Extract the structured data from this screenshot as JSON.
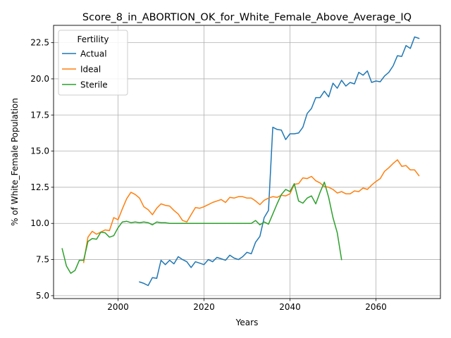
{
  "chart_data": {
    "type": "line",
    "title": "Score_8_in_ABORTION_OK_for_White_Female_Above_Average_IQ",
    "xlabel": "Years",
    "ylabel": "% of White_Female Population",
    "xlim": [
      1985,
      2075
    ],
    "ylim": [
      4.8,
      23.7
    ],
    "x_ticks": [
      2000,
      2020,
      2040,
      2060
    ],
    "y_ticks": [
      5.0,
      7.5,
      10.0,
      12.5,
      15.0,
      17.5,
      20.0,
      22.5
    ],
    "x_tick_labels": [
      "2000",
      "2020",
      "2040",
      "2060"
    ],
    "y_tick_labels": [
      "5.0",
      "7.5",
      "10.0",
      "12.5",
      "15.0",
      "17.5",
      "20.0",
      "22.5"
    ],
    "grid": true,
    "legend": {
      "title": "Fertility",
      "placement": "upper-left"
    },
    "series": [
      {
        "name": "Actual",
        "color": "#1f77b4",
        "x": [
          2005,
          2006,
          2007,
          2008,
          2009,
          2010,
          2011,
          2012,
          2013,
          2014,
          2015,
          2016,
          2017,
          2018,
          2019,
          2020,
          2021,
          2022,
          2023,
          2024,
          2025,
          2026,
          2027,
          2028,
          2029,
          2030,
          2031,
          2032,
          2033,
          2034,
          2035,
          2036,
          2037,
          2038,
          2039,
          2040,
          2041,
          2042,
          2043,
          2044,
          2045,
          2046,
          2047,
          2048,
          2049,
          2050,
          2051,
          2052,
          2053,
          2054,
          2055,
          2056,
          2057,
          2058,
          2059,
          2060,
          2061,
          2062,
          2063,
          2064,
          2065,
          2066,
          2067,
          2068,
          2069,
          2070
        ],
        "y": [
          5.95,
          5.85,
          5.7,
          6.25,
          6.2,
          7.45,
          7.15,
          7.45,
          7.2,
          7.7,
          7.5,
          7.35,
          6.95,
          7.35,
          7.25,
          7.15,
          7.5,
          7.35,
          7.65,
          7.55,
          7.45,
          7.8,
          7.6,
          7.5,
          7.7,
          8.0,
          7.9,
          8.7,
          9.1,
          10.4,
          10.9,
          16.65,
          16.5,
          16.45,
          15.8,
          16.2,
          16.2,
          16.25,
          16.65,
          17.6,
          17.95,
          18.7,
          18.7,
          19.15,
          18.75,
          19.7,
          19.35,
          19.9,
          19.5,
          19.75,
          19.65,
          20.45,
          20.25,
          20.55,
          19.75,
          19.85,
          19.8,
          20.2,
          20.45,
          20.9,
          21.6,
          21.55,
          22.3,
          22.1,
          22.9,
          22.8
        ]
      },
      {
        "name": "Ideal",
        "color": "#ff7f0e",
        "x": [
          1992,
          1993,
          1994,
          1995,
          1996,
          1997,
          1998,
          1999,
          2000,
          2001,
          2002,
          2003,
          2004,
          2005,
          2006,
          2007,
          2008,
          2009,
          2010,
          2011,
          2012,
          2013,
          2014,
          2015,
          2016,
          2017,
          2018,
          2019,
          2020,
          2021,
          2022,
          2023,
          2024,
          2025,
          2026,
          2027,
          2028,
          2029,
          2030,
          2031,
          2032,
          2033,
          2034,
          2035,
          2036,
          2037,
          2038,
          2039,
          2040,
          2041,
          2042,
          2043,
          2044,
          2045,
          2046,
          2047,
          2048,
          2049,
          2050,
          2051,
          2052,
          2053,
          2054,
          2055,
          2056,
          2057,
          2058,
          2059,
          2060,
          2061,
          2062,
          2063,
          2064,
          2065,
          2066,
          2067,
          2068,
          2069,
          2070
        ],
        "y": [
          7.3,
          9.05,
          9.45,
          9.25,
          9.4,
          9.55,
          9.5,
          10.4,
          10.25,
          11.0,
          11.7,
          12.15,
          12.0,
          11.75,
          11.15,
          10.95,
          10.6,
          11.05,
          11.35,
          11.25,
          11.2,
          10.9,
          10.65,
          10.2,
          10.1,
          10.6,
          11.1,
          11.05,
          11.15,
          11.3,
          11.45,
          11.55,
          11.65,
          11.45,
          11.8,
          11.75,
          11.85,
          11.85,
          11.75,
          11.75,
          11.55,
          11.3,
          11.6,
          11.75,
          11.85,
          11.8,
          11.95,
          11.9,
          12.05,
          12.7,
          12.75,
          13.15,
          13.1,
          13.25,
          12.95,
          12.8,
          12.55,
          12.5,
          12.35,
          12.1,
          12.2,
          12.05,
          12.05,
          12.25,
          12.2,
          12.45,
          12.35,
          12.65,
          12.9,
          13.1,
          13.6,
          13.85,
          14.15,
          14.4,
          13.95,
          14.0,
          13.7,
          13.7,
          13.3
        ]
      },
      {
        "name": "Sterile",
        "color": "#2ca02c",
        "x": [
          1987,
          1988,
          1989,
          1990,
          1991,
          1992,
          1993,
          1994,
          1995,
          1996,
          1997,
          1998,
          1999,
          2000,
          2001,
          2002,
          2003,
          2004,
          2005,
          2006,
          2007,
          2008,
          2009,
          2010,
          2011,
          2012,
          2013,
          2014,
          2015,
          2016,
          2017,
          2018,
          2019,
          2020,
          2021,
          2022,
          2023,
          2024,
          2025,
          2026,
          2027,
          2028,
          2029,
          2030,
          2031,
          2032,
          2033,
          2034,
          2035,
          2036,
          2037,
          2038,
          2039,
          2040,
          2041,
          2042,
          2043,
          2044,
          2045,
          2046,
          2047,
          2048,
          2049,
          2050,
          2051,
          2052
        ],
        "y": [
          8.25,
          7.05,
          6.55,
          6.75,
          7.45,
          7.45,
          8.75,
          8.95,
          8.9,
          9.4,
          9.35,
          9.05,
          9.15,
          9.7,
          10.1,
          10.15,
          10.05,
          10.1,
          10.05,
          10.1,
          10.05,
          9.9,
          10.1,
          10.05,
          10.05,
          10.0,
          10.0,
          10.0,
          10.0,
          10.0,
          10.0,
          10.0,
          10.0,
          10.0,
          10.0,
          10.0,
          10.0,
          10.0,
          10.0,
          10.0,
          10.0,
          10.0,
          10.0,
          10.0,
          10.0,
          10.2,
          9.9,
          10.1,
          9.95,
          10.65,
          11.35,
          12.0,
          12.35,
          12.2,
          12.75,
          11.55,
          11.4,
          11.75,
          11.9,
          11.35,
          12.15,
          12.85,
          11.8,
          10.4,
          9.35,
          7.5
        ]
      }
    ]
  }
}
